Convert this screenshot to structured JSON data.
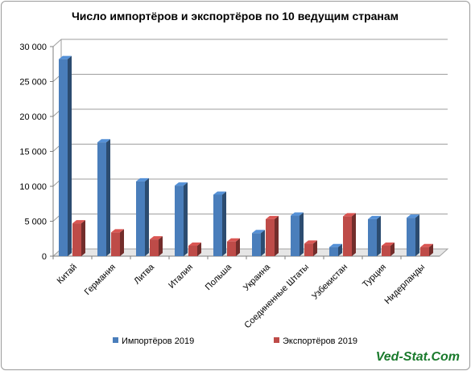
{
  "chart_data": {
    "type": "bar",
    "title": "Число импортёров и экспортёров по 10 ведущим странам",
    "categories": [
      "Китай",
      "Германия",
      "Литва",
      "Италия",
      "Польша",
      "Украина",
      "Соединенные Штаты",
      "Узбекистан",
      "Турция",
      "Нидерланды"
    ],
    "series": [
      {
        "name": "Импортёров 2019",
        "color": "#4a7ebb",
        "values": [
          28200,
          16300,
          10700,
          10100,
          8800,
          3300,
          5800,
          1300,
          5300,
          5500
        ]
      },
      {
        "name": "Экспортёров 2019",
        "color": "#be4b48",
        "values": [
          4700,
          3400,
          2400,
          1500,
          2100,
          5300,
          1800,
          5700,
          1500,
          1300
        ]
      }
    ],
    "xlabel": "",
    "ylabel": "",
    "ylim": [
      0,
      30000
    ],
    "yticks": [
      "0",
      "5 000",
      "10 000",
      "15 000",
      "20 000",
      "25 000",
      "30 000"
    ],
    "grid": true,
    "legend_position": "bottom"
  },
  "watermark": "Ved-Stat.Com"
}
